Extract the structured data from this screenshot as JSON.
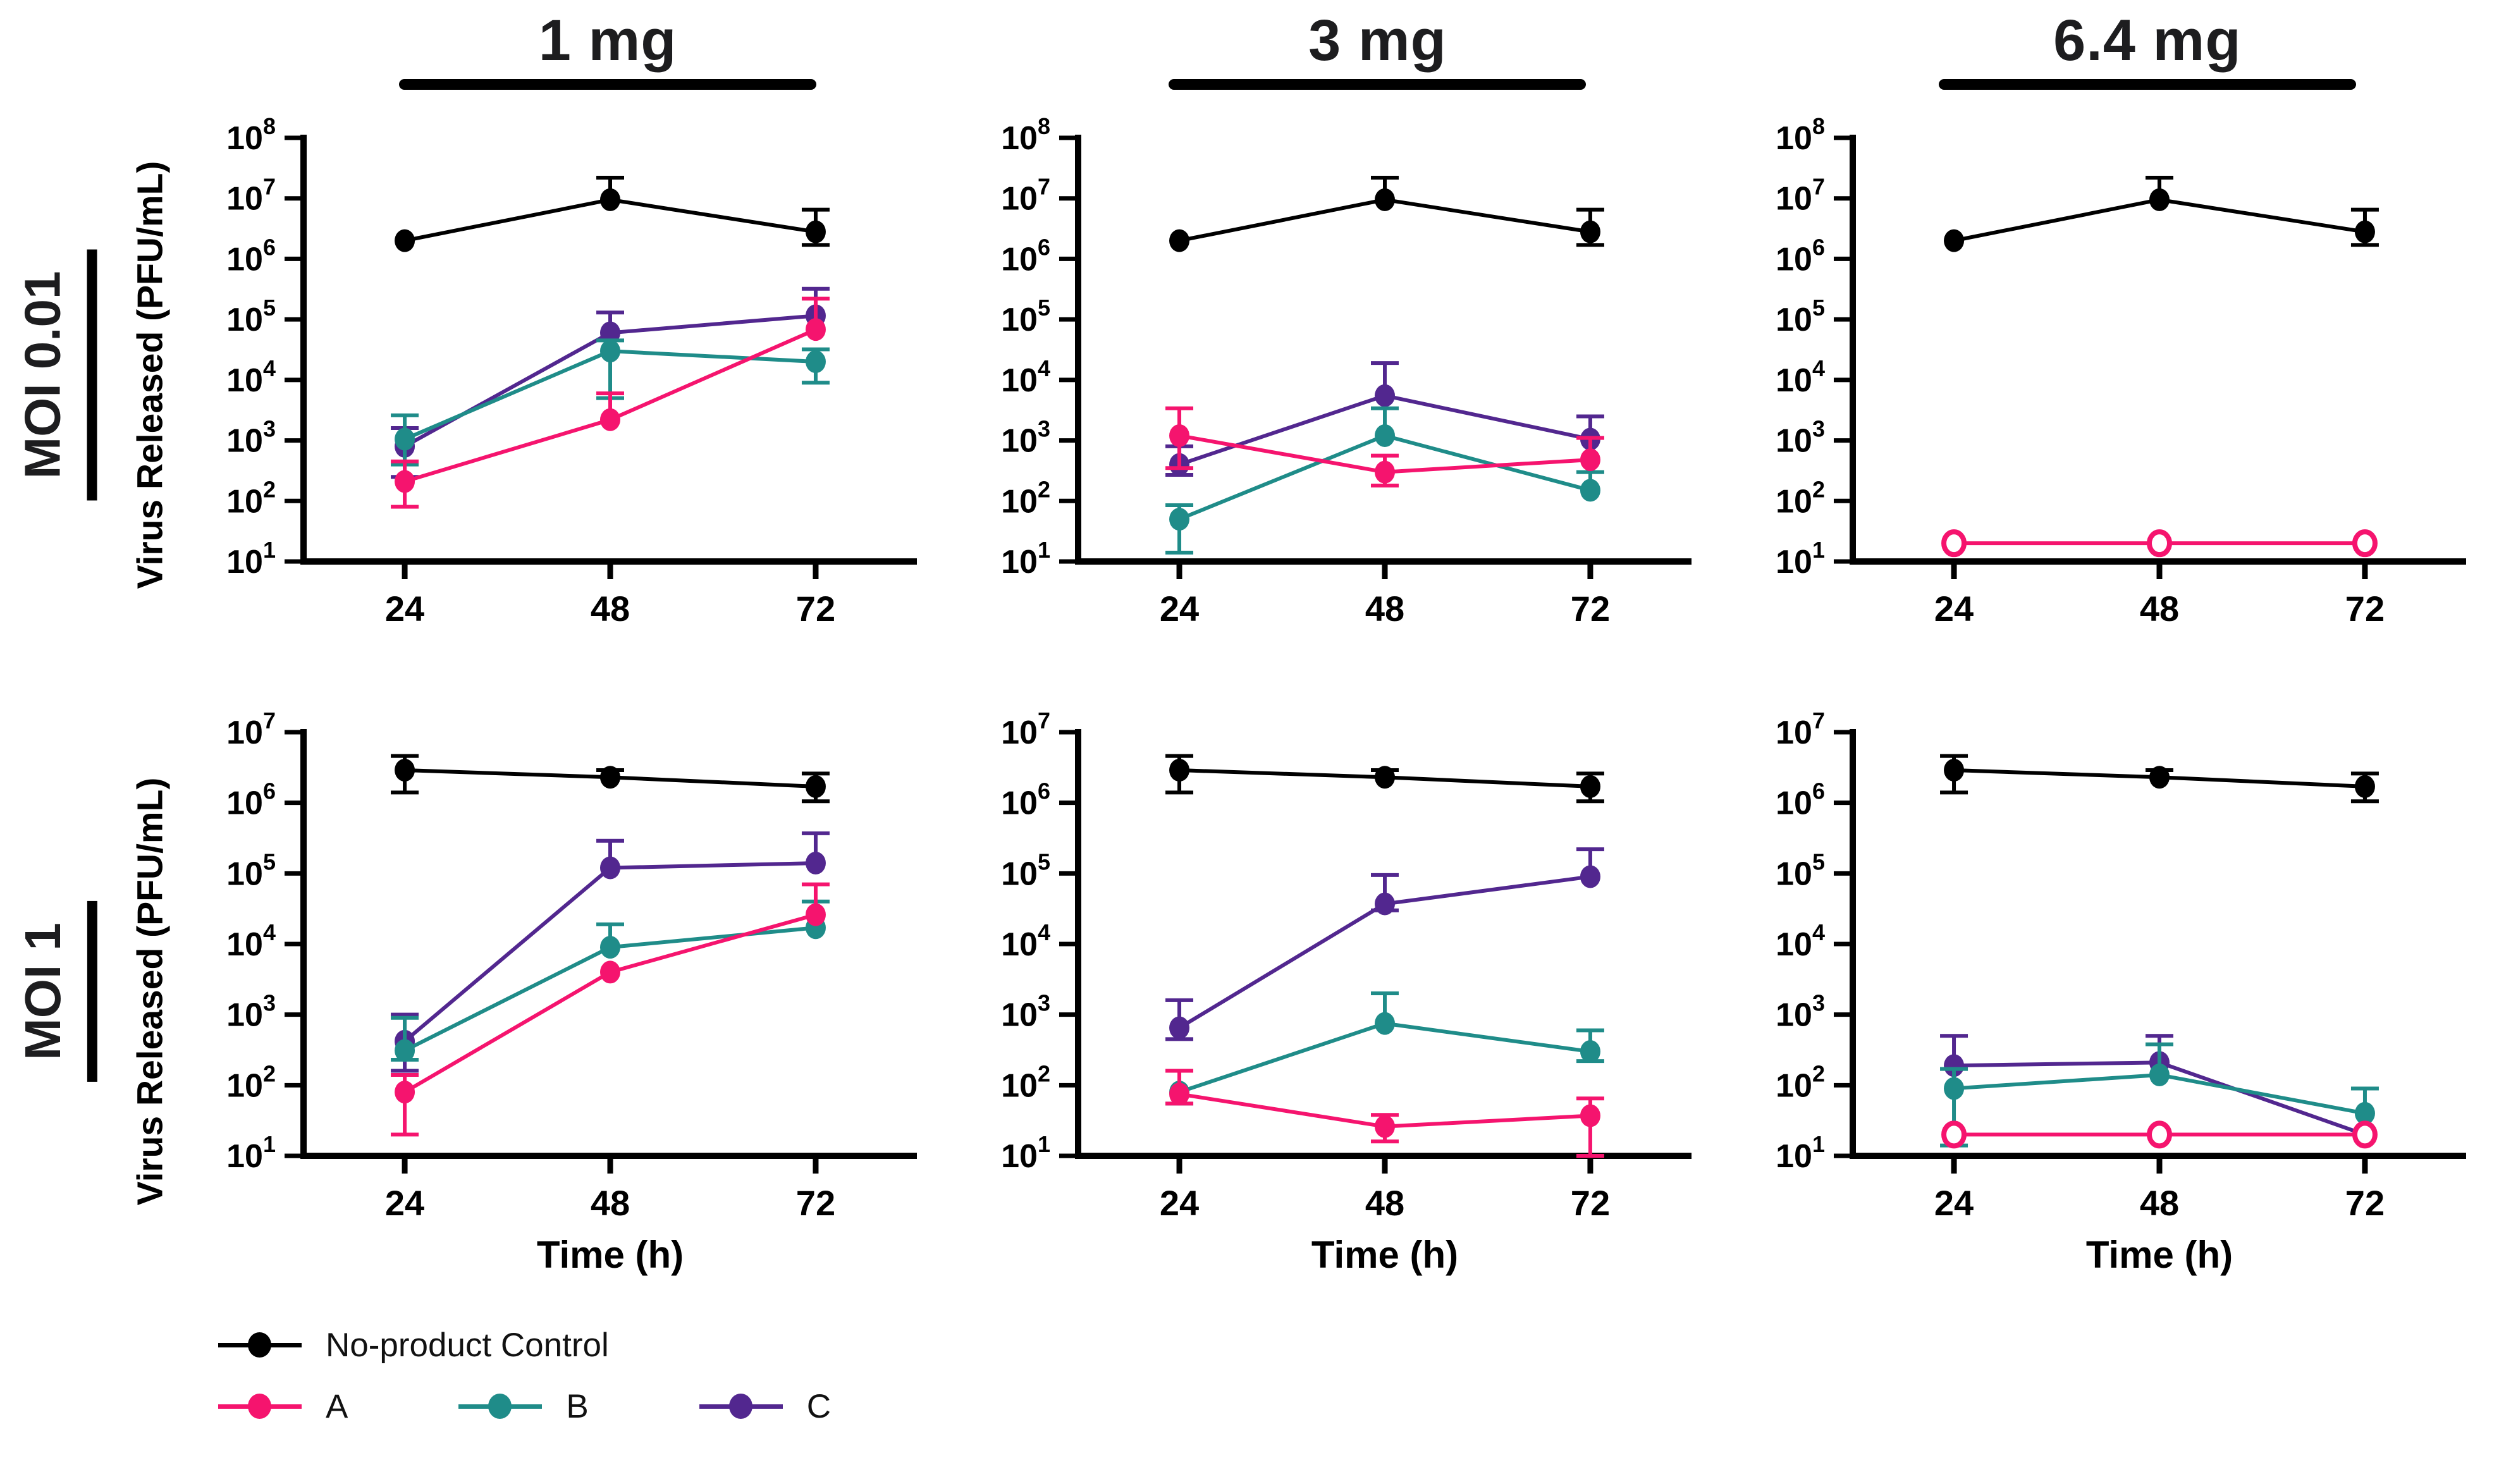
{
  "figure": {
    "background": "#ffffff"
  },
  "column_titles": [
    {
      "label": "1 mg"
    },
    {
      "label": "3 mg"
    },
    {
      "label": "6.4 mg"
    }
  ],
  "row_titles": [
    {
      "label": "MOI 0.01"
    },
    {
      "label": "MOI 1"
    }
  ],
  "axis": {
    "ylabel": "Virus Released (PFU/mL)",
    "xlabel": "Time (h)",
    "xticks": [
      24,
      48,
      72
    ],
    "ytick_base": "10"
  },
  "legend": {
    "items": [
      {
        "name": "No-product Control",
        "color": "#000000"
      },
      {
        "name": "A",
        "color": "#F5146E"
      },
      {
        "name": "B",
        "color": "#1F8C89"
      },
      {
        "name": "C",
        "color": "#52278F"
      }
    ]
  },
  "chart_data": [
    {
      "type": "line",
      "moi": "MOI 0.01",
      "dose": "1 mg",
      "log_y": true,
      "grid": false,
      "x": [
        24,
        48,
        72
      ],
      "ylim": [
        10.0,
        100000000.0
      ],
      "ytick_exponents": [
        1,
        2,
        3,
        4,
        5,
        6,
        7,
        8
      ],
      "series": [
        {
          "name": "No-product Control",
          "color": "#000000",
          "open": false,
          "y": [
            2000000.0,
            9500000.0,
            2800000.0
          ],
          "err_up": [
            2000000.0,
            22000000.0,
            6500000.0
          ],
          "err_dn": [
            2000000.0,
            9500000.0,
            1700000.0
          ]
        },
        {
          "name": "C",
          "color": "#52278F",
          "open": false,
          "y": [
            800.0,
            60000.0,
            115000.0
          ],
          "err_up": [
            1600.0,
            130000.0,
            320000.0
          ],
          "err_dn": [
            250.0,
            60000.0,
            115000.0
          ]
        },
        {
          "name": "B",
          "color": "#1F8C89",
          "open": false,
          "y": [
            1050.0,
            30000.0,
            20000.0
          ],
          "err_up": [
            2600.0,
            45000.0,
            32000.0
          ],
          "err_dn": [
            400.0,
            5000.0,
            9000.0
          ]
        },
        {
          "name": "A",
          "color": "#F5146E",
          "open": false,
          "y": [
            210.0,
            2200.0,
            68000.0
          ],
          "err_up": [
            450.0,
            6000.0,
            220000.0
          ],
          "err_dn": [
            80.0,
            2200.0,
            68000.0
          ]
        }
      ]
    },
    {
      "type": "line",
      "moi": "MOI 0.01",
      "dose": "3 mg",
      "log_y": true,
      "grid": false,
      "x": [
        24,
        48,
        72
      ],
      "ylim": [
        10.0,
        100000000.0
      ],
      "ytick_exponents": [
        1,
        2,
        3,
        4,
        5,
        6,
        7,
        8
      ],
      "series": [
        {
          "name": "No-product Control",
          "color": "#000000",
          "open": false,
          "y": [
            2000000.0,
            9500000.0,
            2800000.0
          ],
          "err_up": [
            2000000.0,
            22000000.0,
            6500000.0
          ],
          "err_dn": [
            2000000.0,
            9500000.0,
            1700000.0
          ]
        },
        {
          "name": "C",
          "color": "#52278F",
          "open": false,
          "y": [
            400.0,
            5500.0,
            1050.0
          ],
          "err_up": [
            800.0,
            19000.0,
            2500.0
          ],
          "err_dn": [
            270.0,
            5500.0,
            1050.0
          ]
        },
        {
          "name": "B",
          "color": "#1F8C89",
          "open": false,
          "y": [
            50.0,
            1200.0,
            150.0
          ],
          "err_up": [
            85.0,
            3400.0,
            300.0
          ],
          "err_dn": [
            14.0,
            1200.0,
            150.0
          ]
        },
        {
          "name": "A",
          "color": "#F5146E",
          "open": false,
          "y": [
            1200.0,
            300.0,
            480.0
          ],
          "err_up": [
            3400.0,
            560.0,
            1100.0
          ],
          "err_dn": [
            350.0,
            180.0,
            480.0
          ]
        }
      ]
    },
    {
      "type": "line",
      "moi": "MOI 0.01",
      "dose": "6.4 mg",
      "log_y": true,
      "grid": false,
      "x": [
        24,
        48,
        72
      ],
      "ylim": [
        10.0,
        100000000.0
      ],
      "ytick_exponents": [
        1,
        2,
        3,
        4,
        5,
        6,
        7,
        8
      ],
      "series": [
        {
          "name": "No-product Control",
          "color": "#000000",
          "open": false,
          "y": [
            2000000.0,
            9500000.0,
            2800000.0
          ],
          "err_up": [
            2000000.0,
            22000000.0,
            6500000.0
          ],
          "err_dn": [
            2000000.0,
            9500000.0,
            1700000.0
          ]
        },
        {
          "name": "A",
          "color": "#F5146E",
          "open": true,
          "y": [
            20.0,
            20.0,
            20.0
          ],
          "err_up": [
            20.0,
            20.0,
            20.0
          ],
          "err_dn": [
            20.0,
            20.0,
            20.0
          ]
        }
      ]
    },
    {
      "type": "line",
      "moi": "MOI 1",
      "dose": "1 mg",
      "log_y": true,
      "grid": false,
      "x": [
        24,
        48,
        72
      ],
      "ylim": [
        10.0,
        10000000.0
      ],
      "ytick_exponents": [
        1,
        2,
        3,
        4,
        5,
        6,
        7
      ],
      "series": [
        {
          "name": "No-product Control",
          "color": "#000000",
          "open": false,
          "y": [
            2900000.0,
            2300000.0,
            1700000.0
          ],
          "err_up": [
            4600000.0,
            2900000.0,
            2600000.0
          ],
          "err_dn": [
            1400000.0,
            2300000.0,
            1050000.0
          ]
        },
        {
          "name": "C",
          "color": "#52278F",
          "open": false,
          "y": [
            420.0,
            120000.0,
            140000.0
          ],
          "err_up": [
            1000.0,
            290000.0,
            370000.0
          ],
          "err_dn": [
            160.0,
            120000.0,
            140000.0
          ]
        },
        {
          "name": "B",
          "color": "#1F8C89",
          "open": false,
          "y": [
            310.0,
            9000.0,
            17000.0
          ],
          "err_up": [
            900.0,
            19000.0,
            40000.0
          ],
          "err_dn": [
            230.0,
            9000.0,
            17000.0
          ]
        },
        {
          "name": "A",
          "color": "#F5146E",
          "open": false,
          "y": [
            80.0,
            4000.0,
            26000.0
          ],
          "err_up": [
            140.0,
            4000.0,
            70000.0
          ],
          "err_dn": [
            20.0,
            4000.0,
            26000.0
          ]
        }
      ]
    },
    {
      "type": "line",
      "moi": "MOI 1",
      "dose": "3 mg",
      "log_y": true,
      "grid": false,
      "x": [
        24,
        48,
        72
      ],
      "ylim": [
        10.0,
        10000000.0
      ],
      "ytick_exponents": [
        1,
        2,
        3,
        4,
        5,
        6,
        7
      ],
      "series": [
        {
          "name": "No-product Control",
          "color": "#000000",
          "open": false,
          "y": [
            2900000.0,
            2300000.0,
            1700000.0
          ],
          "err_up": [
            4600000.0,
            2900000.0,
            2600000.0
          ],
          "err_dn": [
            1400000.0,
            2300000.0,
            1050000.0
          ]
        },
        {
          "name": "C",
          "color": "#52278F",
          "open": false,
          "y": [
            650.0,
            37000.0,
            90000.0
          ],
          "err_up": [
            1600.0,
            95000.0,
            220000.0
          ],
          "err_dn": [
            450.0,
            30000.0,
            90000.0
          ]
        },
        {
          "name": "B",
          "color": "#1F8C89",
          "open": false,
          "y": [
            80.0,
            750.0,
            300.0
          ],
          "err_up": [
            80.0,
            2000.0,
            600.0
          ],
          "err_dn": [
            55.0,
            750.0,
            220.0
          ]
        },
        {
          "name": "A",
          "color": "#F5146E",
          "open": false,
          "y": [
            75.0,
            26.0,
            37.0
          ],
          "err_up": [
            160.0,
            38.0,
            65.0
          ],
          "err_dn": [
            55.0,
            16.0,
            10.0
          ]
        }
      ]
    },
    {
      "type": "line",
      "moi": "MOI 1",
      "dose": "6.4 mg",
      "log_y": true,
      "grid": false,
      "x": [
        24,
        48,
        72
      ],
      "ylim": [
        10.0,
        10000000.0
      ],
      "ytick_exponents": [
        1,
        2,
        3,
        4,
        5,
        6,
        7
      ],
      "series": [
        {
          "name": "No-product Control",
          "color": "#000000",
          "open": false,
          "y": [
            2900000.0,
            2300000.0,
            1700000.0
          ],
          "err_up": [
            4600000.0,
            2900000.0,
            2600000.0
          ],
          "err_dn": [
            1400000.0,
            2300000.0,
            1050000.0
          ]
        },
        {
          "name": "C",
          "color": "#52278F",
          "open": false,
          "y": [
            190.0,
            210.0,
            20.0
          ],
          "err_up": [
            500.0,
            500.0,
            20.0
          ],
          "err_dn": [
            190.0,
            210.0,
            20.0
          ]
        },
        {
          "name": "B",
          "color": "#1F8C89",
          "open": false,
          "y": [
            90.0,
            140.0,
            40.0
          ],
          "err_up": [
            170.0,
            380.0,
            90.0
          ],
          "err_dn": [
            14.0,
            140.0,
            40.0
          ]
        },
        {
          "name": "A",
          "color": "#F5146E",
          "open": true,
          "y": [
            20.0,
            20.0,
            20.0
          ],
          "err_up": [
            20.0,
            20.0,
            20.0
          ],
          "err_dn": [
            20.0,
            20.0,
            20.0
          ]
        }
      ]
    }
  ]
}
